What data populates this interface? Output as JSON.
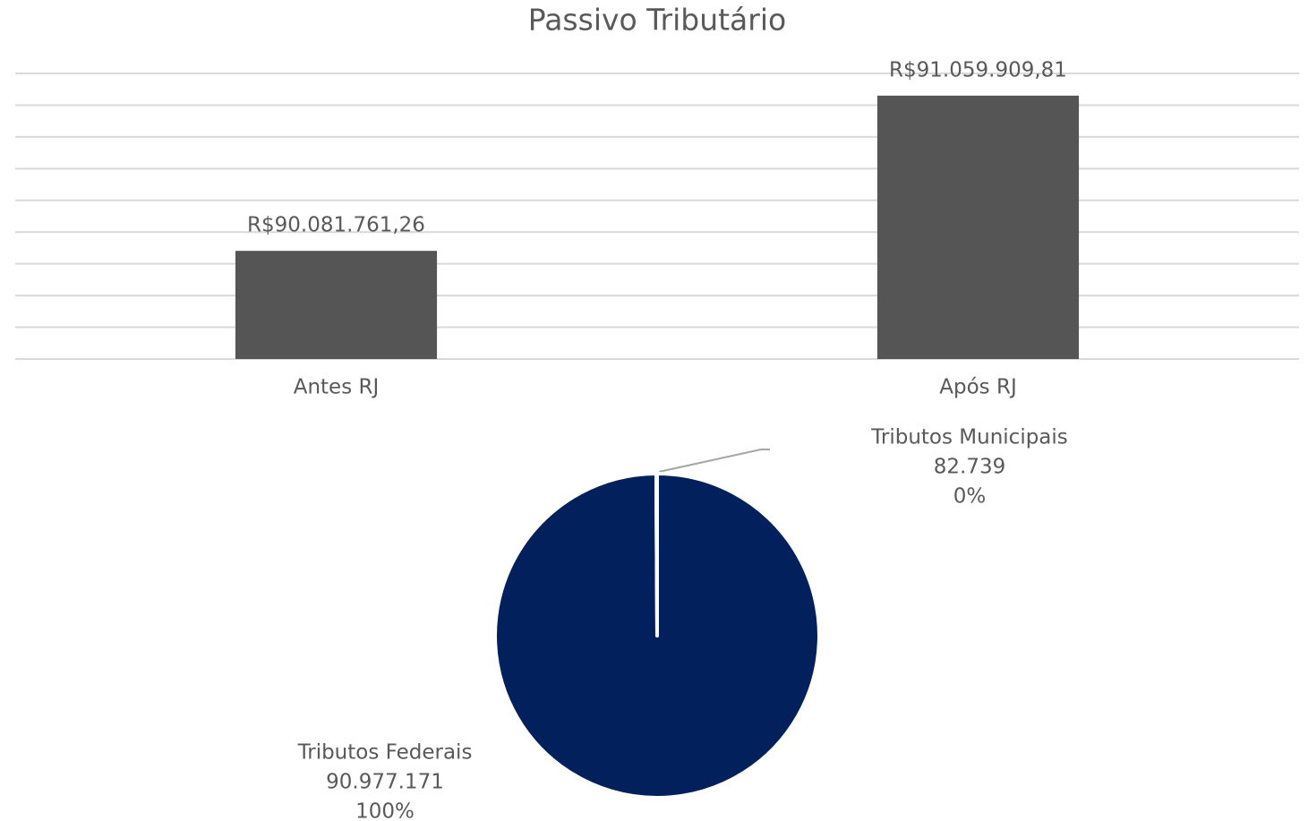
{
  "chart_data": [
    {
      "type": "bar",
      "title": "Passivo Tributário",
      "categories": [
        "Antes RJ",
        "Após RJ"
      ],
      "values": [
        90081761.26,
        91059909.81
      ],
      "value_labels": [
        "R$90.081.761,26",
        "R$91.059.909,81"
      ],
      "color": "#555555",
      "ylim": [
        89400000,
        91200000
      ],
      "yticks": [
        89400000,
        89600000,
        89800000,
        90000000,
        90200000,
        90400000,
        90600000,
        90800000,
        91000000,
        91200000
      ],
      "grid": true
    },
    {
      "type": "pie",
      "categories": [
        "Tributos Federais",
        "Tributos Municipais"
      ],
      "values": [
        90977171,
        82739
      ],
      "value_labels": [
        "90.977.171",
        "82.739"
      ],
      "percent_labels": [
        "100%",
        "0%"
      ],
      "colors": [
        "#02215c",
        "#02215c"
      ]
    }
  ]
}
